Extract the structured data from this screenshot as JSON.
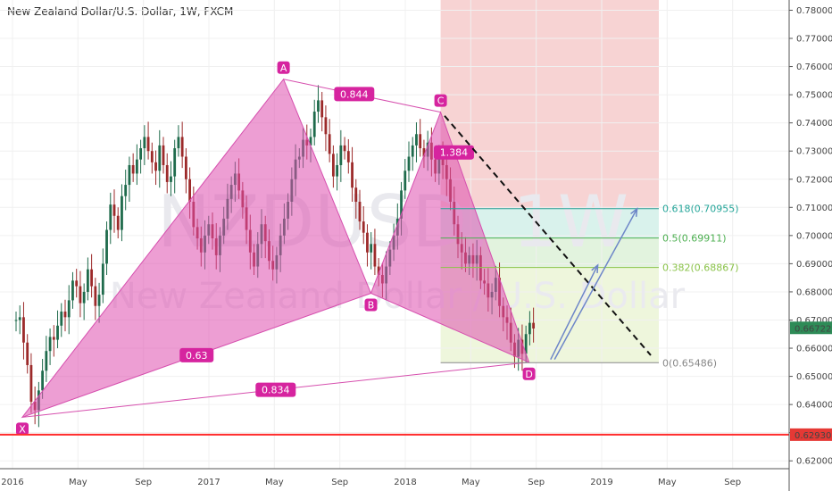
{
  "chart_data": {
    "type": "candlestick",
    "title": "New Zealand Dollar/U.S. Dollar, 1W, FXCM",
    "watermark_symbol": "NZDUSD, 1W",
    "watermark_name": "New Zealand Dollar / U.S. Dollar",
    "ylim": [
      0.615,
      0.783
    ],
    "y_ticks": [
      "0.78000",
      "0.77000",
      "0.76000",
      "0.75000",
      "0.74000",
      "0.73000",
      "0.72000",
      "0.71000",
      "0.70000",
      "0.69000",
      "0.68000",
      "0.67000",
      "0.66000",
      "0.65000",
      "0.64000",
      "0.63000",
      "0.62000"
    ],
    "x_ticks": [
      "2016",
      "May",
      "Sep",
      "2017",
      "May",
      "Sep",
      "2018",
      "May",
      "Sep",
      "2019",
      "May",
      "Sep"
    ],
    "current_price": "0.66722",
    "support_level": "0.62930",
    "pattern_points": [
      {
        "label": "X",
        "time": 0.05,
        "price": 0.6355
      },
      {
        "label": "A",
        "time": 1.38,
        "price": 0.7555
      },
      {
        "label": "B",
        "time": 1.825,
        "price": 0.6795
      },
      {
        "label": "C",
        "time": 2.18,
        "price": 0.7438
      },
      {
        "label": "D",
        "time": 2.63,
        "price": 0.655
      }
    ],
    "ratios": [
      {
        "label": "0.63"
      },
      {
        "label": "0.844"
      },
      {
        "label": "1.384"
      },
      {
        "label": "0.834"
      }
    ],
    "fib_levels": [
      {
        "label": "0.618(0.70955)",
        "price": 0.70955,
        "color": "#26a69a"
      },
      {
        "label": "0.5(0.69911)",
        "price": 0.69911,
        "color": "#4caf50"
      },
      {
        "label": "0.382(0.68867)",
        "price": 0.68867,
        "color": "#8bc34a"
      },
      {
        "label": "0(0.65486)",
        "price": 0.65486,
        "color": "#888888"
      }
    ],
    "candles_weekly": [
      0.67,
      0.671,
      0.662,
      0.654,
      0.641,
      0.638,
      0.645,
      0.652,
      0.659,
      0.664,
      0.663,
      0.668,
      0.673,
      0.671,
      0.677,
      0.684,
      0.682,
      0.676,
      0.68,
      0.688,
      0.682,
      0.675,
      0.679,
      0.69,
      0.702,
      0.711,
      0.707,
      0.702,
      0.714,
      0.718,
      0.725,
      0.722,
      0.727,
      0.731,
      0.735,
      0.73,
      0.726,
      0.723,
      0.732,
      0.725,
      0.719,
      0.721,
      0.731,
      0.735,
      0.728,
      0.72,
      0.712,
      0.703,
      0.699,
      0.694,
      0.7,
      0.704,
      0.699,
      0.693,
      0.7,
      0.706,
      0.713,
      0.718,
      0.722,
      0.716,
      0.71,
      0.702,
      0.694,
      0.689,
      0.697,
      0.704,
      0.698,
      0.691,
      0.688,
      0.693,
      0.7,
      0.706,
      0.712,
      0.72,
      0.727,
      0.728,
      0.734,
      0.732,
      0.735,
      0.744,
      0.748,
      0.742,
      0.736,
      0.729,
      0.721,
      0.725,
      0.732,
      0.73,
      0.726,
      0.717,
      0.712,
      0.705,
      0.701,
      0.694,
      0.697,
      0.689,
      0.686,
      0.683,
      0.689,
      0.695,
      0.7,
      0.706,
      0.716,
      0.723,
      0.728,
      0.732,
      0.736,
      0.731,
      0.728,
      0.733,
      0.727,
      0.722,
      0.728,
      0.725,
      0.72,
      0.712,
      0.704,
      0.697,
      0.694,
      0.69,
      0.693,
      0.69,
      0.693,
      0.684,
      0.683,
      0.678,
      0.68,
      0.685,
      0.675,
      0.671,
      0.669,
      0.662,
      0.657,
      0.663,
      0.658,
      0.665,
      0.669,
      0.667
    ],
    "up_color": "#1f6b4c",
    "down_color": "#9c2a2a"
  }
}
